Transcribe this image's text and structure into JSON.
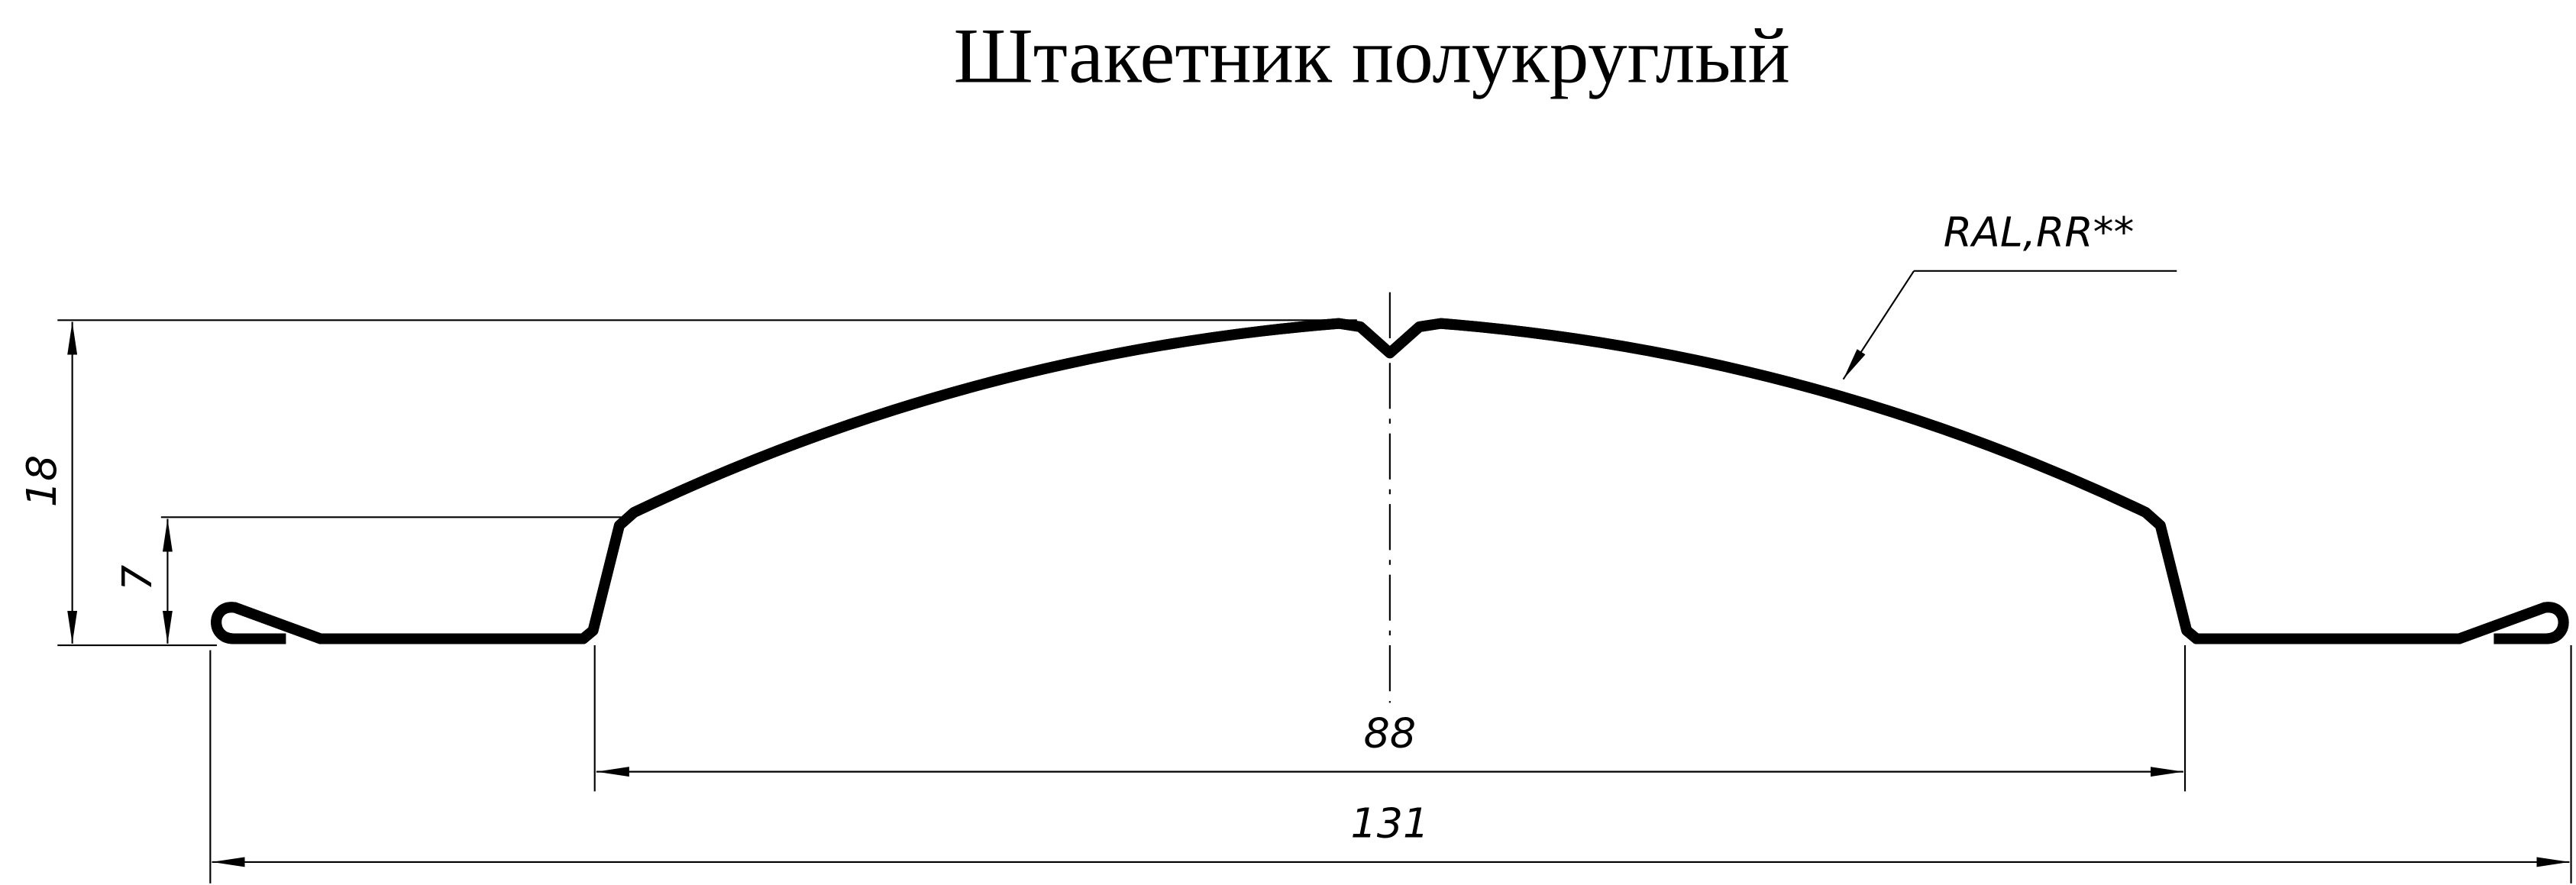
{
  "title": "Штакетник полукруглый",
  "note": "RAL,RR**",
  "dimensions": {
    "total_height": "18",
    "edge_height": "7",
    "middle_width": "88",
    "total_width": "131"
  },
  "colors": {
    "line": "#000000",
    "background": "#ffffff"
  }
}
